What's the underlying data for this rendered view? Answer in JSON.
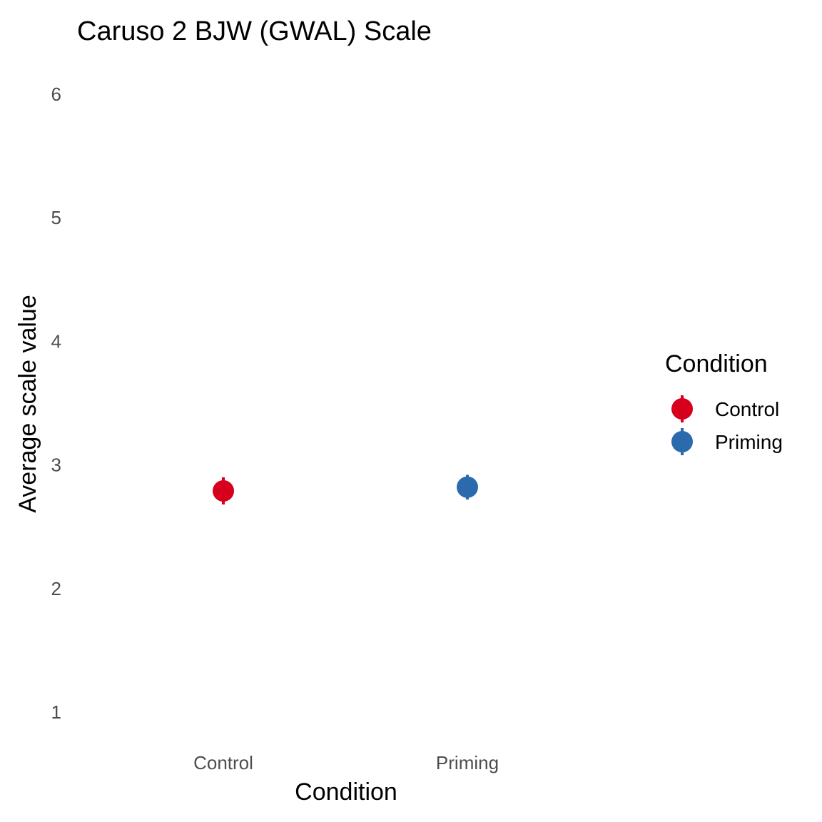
{
  "chart_data": {
    "type": "scatter",
    "title": "Caruso 2 BJW (GWAL) Scale",
    "xlabel": "Condition",
    "ylabel": "Average scale value",
    "categories": [
      "Control",
      "Priming"
    ],
    "ylim": [
      0.8,
      6.2
    ],
    "yticks": [
      1,
      2,
      3,
      4,
      5,
      6
    ],
    "grid": false,
    "series": [
      {
        "name": "Control",
        "category": "Control",
        "mean": 2.79,
        "ci_low": 2.68,
        "ci_high": 2.9,
        "color": "#d7001c"
      },
      {
        "name": "Priming",
        "category": "Priming",
        "mean": 2.82,
        "ci_low": 2.72,
        "ci_high": 2.92,
        "color": "#2b6aad"
      }
    ],
    "legend": {
      "title": "Condition",
      "position": "right",
      "items": [
        "Control",
        "Priming"
      ]
    }
  }
}
